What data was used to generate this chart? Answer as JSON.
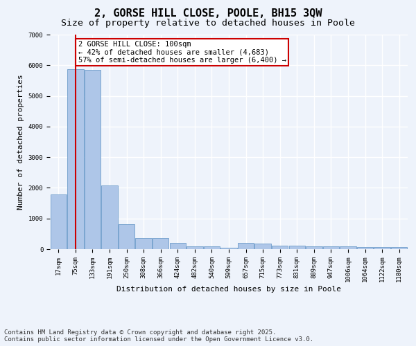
{
  "title": "2, GORSE HILL CLOSE, POOLE, BH15 3QW",
  "subtitle": "Size of property relative to detached houses in Poole",
  "xlabel": "Distribution of detached houses by size in Poole",
  "ylabel": "Number of detached properties",
  "bar_labels": [
    "17sqm",
    "75sqm",
    "133sqm",
    "191sqm",
    "250sqm",
    "308sqm",
    "366sqm",
    "424sqm",
    "482sqm",
    "540sqm",
    "599sqm",
    "657sqm",
    "715sqm",
    "773sqm",
    "831sqm",
    "889sqm",
    "947sqm",
    "1006sqm",
    "1064sqm",
    "1122sqm",
    "1180sqm"
  ],
  "bar_values": [
    1780,
    5860,
    5840,
    2080,
    820,
    370,
    370,
    195,
    90,
    90,
    50,
    200,
    185,
    105,
    105,
    85,
    85,
    85,
    75,
    75,
    75
  ],
  "bar_color": "#aec6e8",
  "bar_edge_color": "#5a8fc2",
  "background_color": "#eef3fb",
  "grid_color": "#ffffff",
  "ylim": [
    0,
    7000
  ],
  "annotation_text": "2 GORSE HILL CLOSE: 100sqm\n← 42% of detached houses are smaller (4,683)\n57% of semi-detached houses are larger (6,400) →",
  "annotation_box_color": "#ffffff",
  "annotation_box_edge_color": "#cc0000",
  "vline_x": 1,
  "vline_color": "#cc0000",
  "footer_line1": "Contains HM Land Registry data © Crown copyright and database right 2025.",
  "footer_line2": "Contains public sector information licensed under the Open Government Licence v3.0.",
  "title_fontsize": 11,
  "subtitle_fontsize": 9.5,
  "axis_label_fontsize": 8,
  "tick_fontsize": 6.5,
  "annotation_fontsize": 7.5,
  "footer_fontsize": 6.5
}
